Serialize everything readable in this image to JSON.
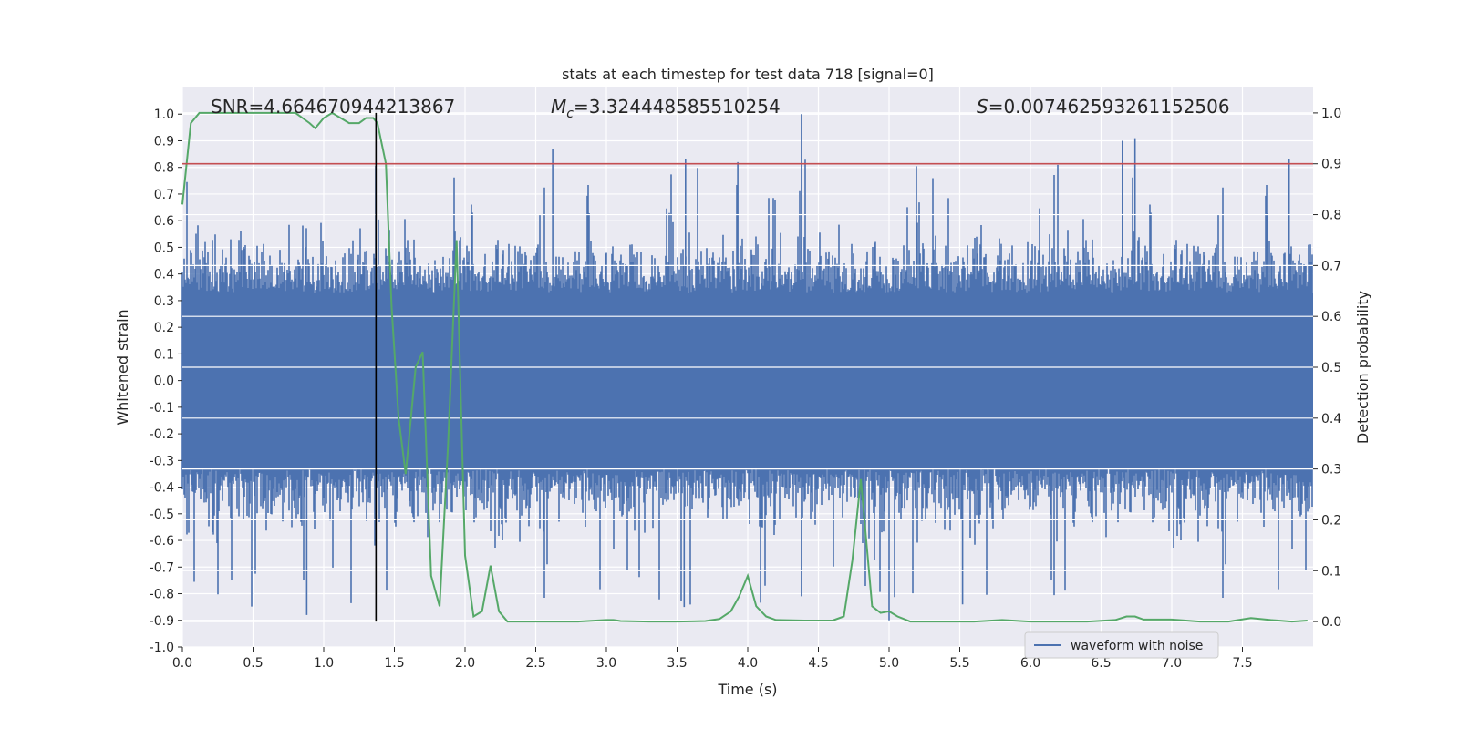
{
  "chart_data": {
    "type": "line",
    "title": "stats at each timestep for test data 718 [signal=0]",
    "xlabel": "Time (s)",
    "ylabel": "Whitened strain",
    "ylabel_right": "Detection probability",
    "xlim": [
      0.0,
      8.0
    ],
    "ylim": [
      -1.0,
      1.1
    ],
    "ylim_right": [
      -0.05,
      1.05
    ],
    "xticks": [
      "0.0",
      "0.5",
      "1.0",
      "1.5",
      "2.0",
      "2.5",
      "3.0",
      "3.5",
      "4.0",
      "4.5",
      "5.0",
      "5.5",
      "6.0",
      "6.5",
      "7.0",
      "7.5"
    ],
    "yticks": [
      "-1.0",
      "-0.9",
      "-0.8",
      "-0.7",
      "-0.6",
      "-0.5",
      "-0.4",
      "-0.3",
      "-0.2",
      "-0.1",
      "0.0",
      "0.1",
      "0.2",
      "0.3",
      "0.4",
      "0.5",
      "0.6",
      "0.7",
      "0.8",
      "0.9",
      "1.0"
    ],
    "yticks_right": [
      "0.0",
      "0.1",
      "0.2",
      "0.3",
      "0.4",
      "0.5",
      "0.6",
      "0.7",
      "0.8",
      "0.9",
      "1.0"
    ],
    "grid": true,
    "legend_position": "lower-right",
    "annotations": {
      "snr": "SNR=4.664670944213867",
      "mc_symbol": "M",
      "mc_sub": "c",
      "mc_value": "=3.324448585510254",
      "s_symbol": "S",
      "s_value": "=0.007462593261152506"
    },
    "threshold": {
      "value": 0.9,
      "axis": "right",
      "color": "#c44e52"
    },
    "marker_time": 1.37,
    "series": [
      {
        "name": "waveform with noise",
        "axis": "left",
        "color": "#4c72b0",
        "kind": "noise",
        "core_amplitude": 0.33,
        "max_peak": 1.0,
        "min_trough": -0.9
      },
      {
        "axis": "right",
        "color": "#55a868",
        "x": [
          0.0,
          0.06,
          0.12,
          0.2,
          0.3,
          0.4,
          0.5,
          0.6,
          0.7,
          0.8,
          0.85,
          0.9,
          0.94,
          1.0,
          1.06,
          1.12,
          1.18,
          1.25,
          1.3,
          1.35,
          1.38,
          1.44,
          1.48,
          1.53,
          1.58,
          1.65,
          1.7,
          1.76,
          1.82,
          1.88,
          1.94,
          2.0,
          2.06,
          2.12,
          2.18,
          2.24,
          2.3,
          2.45,
          2.6,
          2.8,
          3.0,
          3.05,
          3.1,
          3.3,
          3.5,
          3.7,
          3.8,
          3.88,
          3.94,
          4.0,
          4.06,
          4.13,
          4.2,
          4.4,
          4.6,
          4.68,
          4.74,
          4.8,
          4.88,
          4.94,
          5.0,
          5.06,
          5.15,
          5.4,
          5.6,
          5.8,
          6.0,
          6.2,
          6.4,
          6.6,
          6.68,
          6.74,
          6.8,
          7.0,
          7.2,
          7.4,
          7.56,
          7.7,
          7.85,
          7.96
        ],
        "y": [
          0.82,
          0.98,
          1.0,
          1.0,
          1.0,
          1.0,
          1.0,
          1.0,
          1.0,
          1.0,
          0.99,
          0.98,
          0.97,
          0.99,
          1.0,
          0.99,
          0.98,
          0.98,
          0.99,
          0.99,
          0.98,
          0.9,
          0.62,
          0.4,
          0.29,
          0.5,
          0.53,
          0.09,
          0.03,
          0.35,
          0.75,
          0.13,
          0.01,
          0.02,
          0.11,
          0.02,
          0.0,
          0.0,
          0.0,
          0.0,
          0.003,
          0.003,
          0.001,
          0.0,
          0.0,
          0.001,
          0.005,
          0.02,
          0.05,
          0.09,
          0.03,
          0.01,
          0.003,
          0.002,
          0.002,
          0.01,
          0.12,
          0.28,
          0.03,
          0.017,
          0.02,
          0.01,
          0.0,
          0.0,
          0.0,
          0.003,
          0.0,
          0.0,
          0.0,
          0.003,
          0.01,
          0.01,
          0.004,
          0.004,
          0.0,
          0.0,
          0.007,
          0.003,
          0.0,
          0.002
        ]
      }
    ]
  }
}
